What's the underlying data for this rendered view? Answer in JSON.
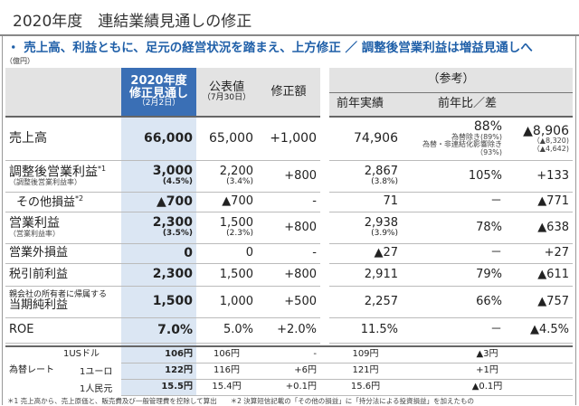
{
  "title": "2020年度　連結業績見通しの修正",
  "headline": "・ 売上高、利益ともに、足元の経営状況を踏まえ、上方修正 ／ 調整後営業利益は増益見通しへ",
  "unit": "（億円）",
  "header": {
    "forecast_l1": "2020年度",
    "forecast_l2": "修正見通し",
    "forecast_l3": "（2月2日）",
    "published_l1": "公表値",
    "published_l2": "（7月30日）",
    "revision": "修正額",
    "reference": "（参考）",
    "prev_actual": "前年実績",
    "yoy": "前年比／差"
  },
  "rows": [
    {
      "label": "売上高",
      "forecast": "66,000",
      "published": "65,000",
      "revision": "+1,000",
      "prev": "74,906",
      "yoy": "88%",
      "yoy_note1": "為替除き(89%)",
      "yoy_note2": "為替・非連結化影響除き（93%)",
      "diff": "▲8,906",
      "diff_note1": "（▲8,320)",
      "diff_note2": "（▲4,642)"
    },
    {
      "label": "調整後営業利益",
      "label_sup": "*1",
      "label_sub": "（調整後営業利益率）",
      "forecast": "3,000",
      "forecast_sub": "(4.5%)",
      "published": "2,200",
      "published_sub": "(3.4%)",
      "revision": "+800",
      "prev": "2,867",
      "prev_sub": "(3.8%)",
      "yoy": "105%",
      "diff": "+133"
    },
    {
      "label": "その他損益",
      "label_sup": "*2",
      "forecast": "▲700",
      "published": "▲700",
      "revision": "-",
      "prev": "71",
      "yoy": "－",
      "diff": "▲771"
    },
    {
      "label": "営業利益",
      "label_sub": "（営業利益率）",
      "forecast": "2,300",
      "forecast_sub": "(3.5%)",
      "published": "1,500",
      "published_sub": "(2.3%)",
      "revision": "+800",
      "prev": "2,938",
      "prev_sub": "(3.9%)",
      "yoy": "78%",
      "diff": "▲638"
    },
    {
      "label": "営業外損益",
      "forecast": "0",
      "published": "0",
      "revision": "-",
      "prev": "▲27",
      "yoy": "－",
      "diff": "+27"
    },
    {
      "label": "税引前利益",
      "forecast": "2,300",
      "published": "1,500",
      "revision": "+800",
      "prev": "2,911",
      "yoy": "79%",
      "diff": "▲611"
    },
    {
      "label": "当期純利益",
      "label_pre": "親会社の所有者に帰属する",
      "forecast": "1,500",
      "published": "1,000",
      "revision": "+500",
      "prev": "2,257",
      "yoy": "66%",
      "diff": "▲757"
    },
    {
      "label": "ROE",
      "forecast": "7.0%",
      "published": "5.0%",
      "revision": "+2.0%",
      "prev": "11.5%",
      "yoy": "－",
      "diff": "▲4.5%"
    }
  ],
  "fx": {
    "label": "為替レート",
    "rows": [
      {
        "currency": "1USドル",
        "forecast": "106円",
        "published": "106円",
        "revision": "-",
        "prev": "109円",
        "diff": "▲3円"
      },
      {
        "currency": "1ユーロ",
        "forecast": "122円",
        "published": "116円",
        "revision": "+6円",
        "prev": "121円",
        "diff": "+1円"
      },
      {
        "currency": "1人民元",
        "forecast": "15.5円",
        "published": "15.4円",
        "revision": "+0.1円",
        "prev": "15.6円",
        "diff": "▲0.1円"
      }
    ]
  },
  "footnotes": "＊1  売上高から、売上原価と、販売費及び一般管理費を控除して算出　　＊2  決算短信記載の「その他の損益」に「持分法による投資損益」を加えたもの"
}
